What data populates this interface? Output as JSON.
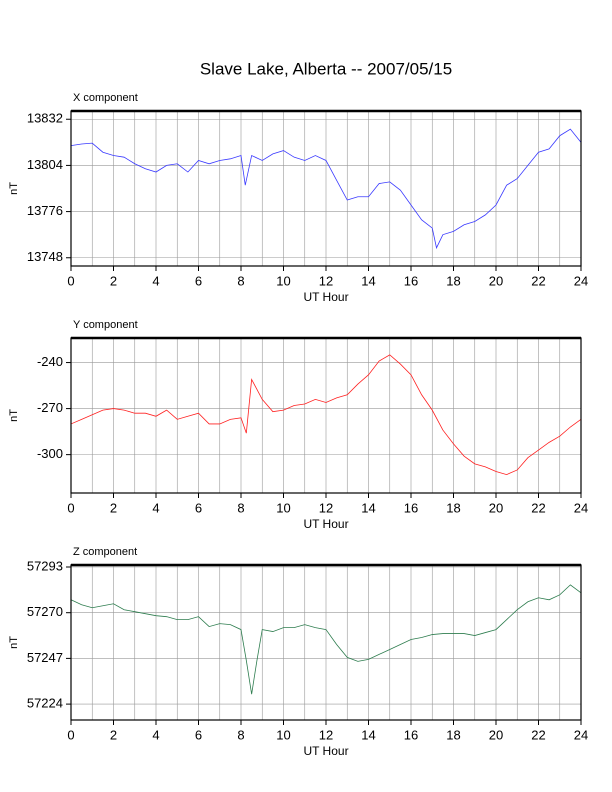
{
  "title": "Slave Lake, Alberta -- 2007/05/15",
  "chart_data": [
    {
      "type": "line",
      "title": "X component",
      "xlabel": "UT Hour",
      "ylabel": "nT",
      "x": [
        0,
        0.5,
        1,
        1.5,
        2,
        2.5,
        3,
        3.5,
        4,
        4.5,
        5,
        5.5,
        6,
        6.5,
        7,
        7.5,
        8,
        8.2,
        8.5,
        9,
        9.5,
        10,
        10.5,
        11,
        11.5,
        12,
        12.5,
        13,
        13.5,
        14,
        14.5,
        15,
        15.5,
        16,
        16.5,
        17,
        17.2,
        17.5,
        18,
        18.5,
        19,
        19.5,
        20,
        20.5,
        21,
        21.5,
        22,
        22.5,
        23,
        23.5,
        24
      ],
      "series": [
        {
          "name": "X",
          "color": "#3a3aff",
          "values": [
            13816,
            13817,
            13817.5,
            13812,
            13810,
            13809,
            13805,
            13802,
            13800,
            13804,
            13805,
            13800,
            13807,
            13805,
            13807,
            13808,
            13810,
            13792,
            13810,
            13807,
            13811,
            13813,
            13809,
            13807,
            13810,
            13807,
            13795,
            13783,
            13785,
            13785,
            13793,
            13794,
            13789,
            13780,
            13771,
            13766,
            13754,
            13762,
            13764,
            13768,
            13770,
            13774,
            13780,
            13792,
            13796,
            13804,
            13812,
            13814,
            13822,
            13826,
            13818
          ]
        }
      ],
      "xlim": [
        0,
        24
      ],
      "xticks": [
        0,
        2,
        4,
        6,
        8,
        10,
        12,
        14,
        16,
        18,
        20,
        22,
        24
      ],
      "ylim": [
        13743,
        13837
      ],
      "yticks": [
        13748,
        13776,
        13804,
        13832
      ],
      "grid": true
    },
    {
      "type": "line",
      "title": "Y component",
      "xlabel": "UT Hour",
      "ylabel": "nT",
      "x": [
        0,
        0.5,
        1,
        1.5,
        2,
        2.5,
        3,
        3.5,
        4,
        4.5,
        5,
        5.5,
        6,
        6.5,
        7,
        7.5,
        8,
        8.25,
        8.5,
        9,
        9.5,
        10,
        10.5,
        11,
        11.5,
        12,
        12.5,
        13,
        13.5,
        14,
        14.5,
        15,
        15.5,
        16,
        16.5,
        17,
        17.5,
        18,
        18.5,
        19,
        19.5,
        20,
        20.5,
        21,
        21.5,
        22,
        22.5,
        23,
        23.5,
        24
      ],
      "series": [
        {
          "name": "Y",
          "color": "#ff2020",
          "values": [
            -280,
            -277,
            -274,
            -271,
            -270,
            -271,
            -273,
            -273,
            -275,
            -271,
            -277,
            -275,
            -273,
            -280,
            -280,
            -277,
            -276,
            -286,
            -251,
            -264,
            -272,
            -271,
            -268,
            -267,
            -264,
            -266,
            -263,
            -261,
            -254,
            -248,
            -239,
            -235,
            -241,
            -248,
            -261,
            -271,
            -284,
            -293,
            -301,
            -306,
            -308,
            -311,
            -313,
            -310,
            -302,
            -297,
            -292,
            -288,
            -282,
            -277
          ]
        }
      ],
      "xlim": [
        0,
        24
      ],
      "xticks": [
        0,
        2,
        4,
        6,
        8,
        10,
        12,
        14,
        16,
        18,
        20,
        22,
        24
      ],
      "ylim": [
        -325,
        -224
      ],
      "yticks": [
        -300,
        -270,
        -240
      ],
      "grid": true
    },
    {
      "type": "line",
      "title": "Z component",
      "xlabel": "UT Hour",
      "ylabel": "nT",
      "x": [
        0,
        0.5,
        1,
        1.5,
        2,
        2.5,
        3,
        3.5,
        4,
        4.5,
        5,
        5.5,
        6,
        6.5,
        7,
        7.5,
        8,
        8.25,
        8.5,
        8.75,
        9,
        9.5,
        10,
        10.5,
        11,
        11.5,
        12,
        12.5,
        13,
        13.5,
        14,
        14.5,
        15,
        15.5,
        16,
        16.5,
        17,
        17.5,
        18,
        18.5,
        19,
        19.5,
        20,
        20.5,
        21,
        21.5,
        22,
        22.5,
        23,
        23.5,
        24
      ],
      "series": [
        {
          "name": "Z",
          "color": "#2e7d4f",
          "values": [
            57276.5,
            57274,
            57272.5,
            57273.5,
            57274.5,
            57271.5,
            57270.5,
            57269.5,
            57268.5,
            57268,
            57266.5,
            57266.5,
            57268,
            57263,
            57264.5,
            57264,
            57261.5,
            57246,
            57229,
            57246,
            57261.5,
            57260.5,
            57262.5,
            57262.5,
            57264,
            57262.5,
            57261.5,
            57254,
            57247.5,
            57245.5,
            57246.5,
            57249,
            57251.5,
            57254,
            57256.5,
            57257.5,
            57259,
            57259.5,
            57259.5,
            57259.5,
            57258.5,
            57260,
            57261.5,
            57266.5,
            57271.5,
            57275.5,
            57277.5,
            57276.5,
            57279,
            57284,
            57280
          ]
        }
      ],
      "xlim": [
        0,
        24
      ],
      "xticks": [
        0,
        2,
        4,
        6,
        8,
        10,
        12,
        14,
        16,
        18,
        20,
        22,
        24
      ],
      "ylim": [
        57216,
        57294
      ],
      "yticks": [
        57224,
        57247,
        57270,
        57293
      ],
      "grid": true
    }
  ]
}
